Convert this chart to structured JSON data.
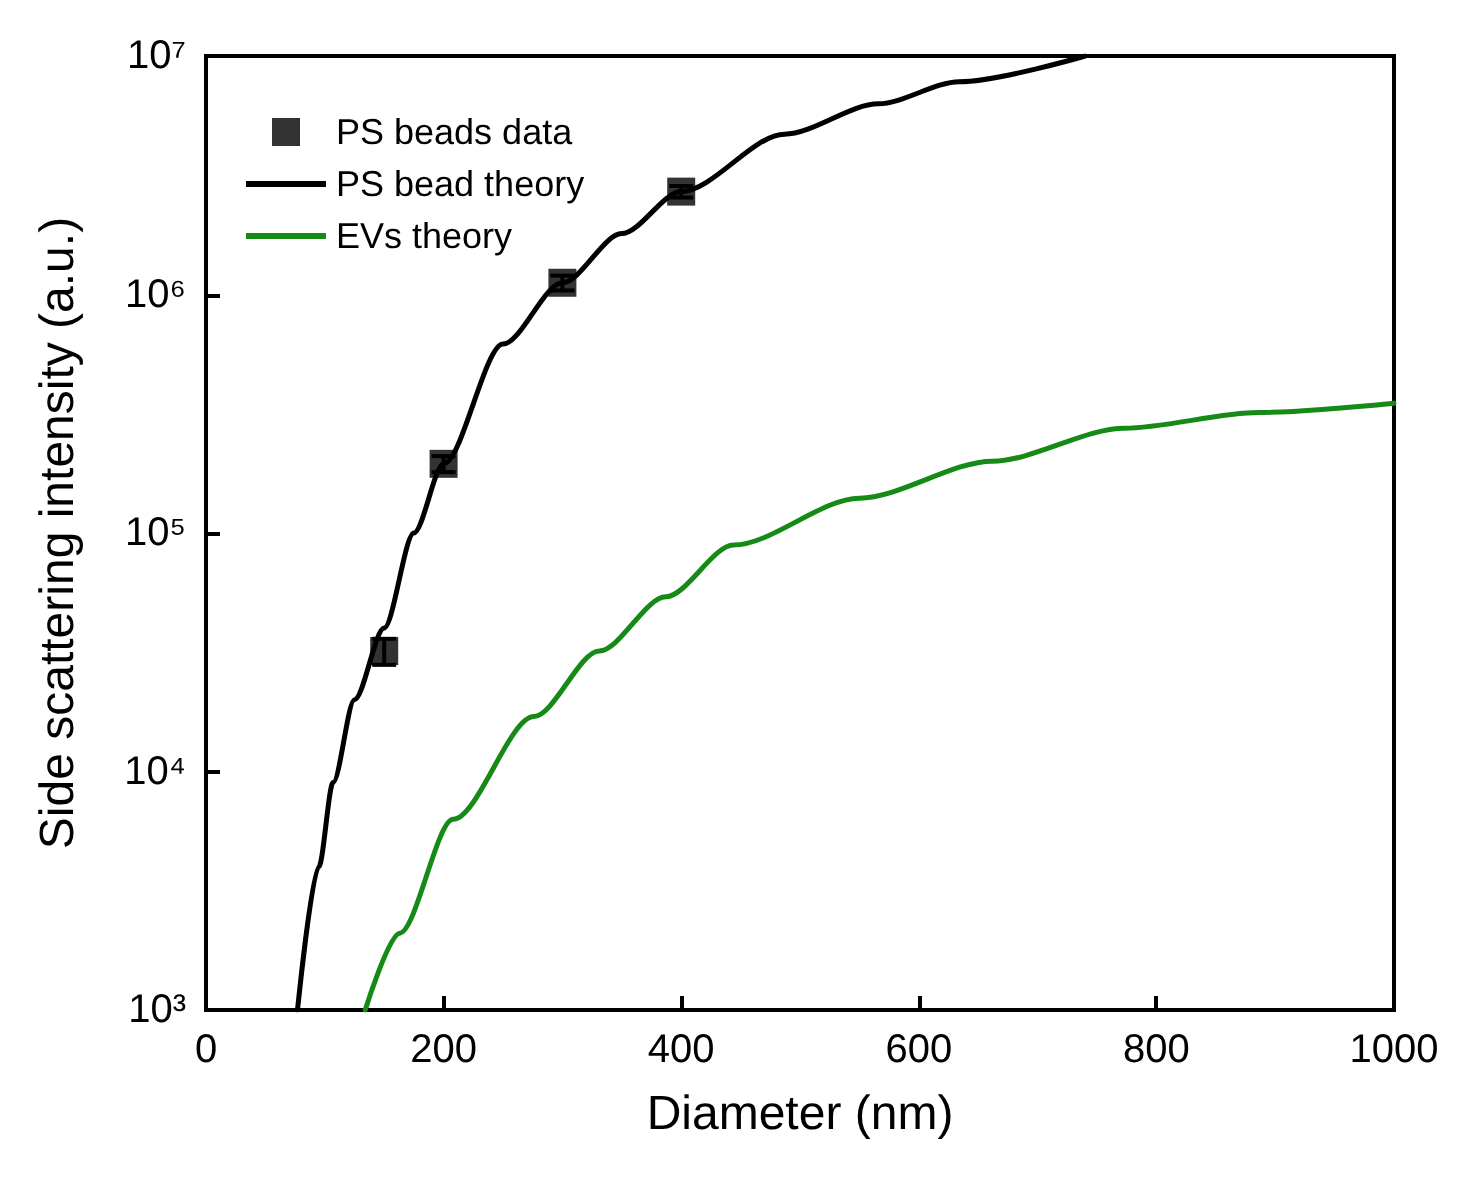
{
  "chart_data": {
    "type": "line",
    "xlabel": "Diameter (nm)",
    "ylabel": "Side scattering intensity (a.u.)",
    "xlim": [
      0,
      1000
    ],
    "xticks": [
      0,
      200,
      400,
      600,
      800,
      1000
    ],
    "ylim": [
      1000,
      10000000
    ],
    "yticks": [
      {
        "value": 1000,
        "label": "10³"
      },
      {
        "value": 10000,
        "label": "10⁴"
      },
      {
        "value": 100000,
        "label": "10⁵"
      },
      {
        "value": 1000000,
        "label": "10⁶"
      },
      {
        "value": 10000000,
        "label": "10⁷"
      }
    ],
    "log": "y",
    "grid": false,
    "legend": "top left",
    "series": [
      {
        "name": "PS beads data",
        "type": "scatter",
        "marker": "square",
        "color": "#000000",
        "x": [
          150,
          200,
          300,
          400
        ],
        "values": [
          32000,
          195000,
          1120000,
          2700000
        ],
        "errors": [
          4000,
          15000,
          80000,
          150000
        ]
      },
      {
        "name": "PS bead theory",
        "line_style": "solid",
        "color": "#000000",
        "x": [
          77,
          95,
          107,
          125,
          150,
          175,
          200,
          250,
          300,
          350,
          400,
          487,
          566,
          634,
          740
        ],
        "values": [
          1000,
          4000,
          9000,
          20000,
          40000,
          100000,
          195000,
          620000,
          1120000,
          1800000,
          2700000,
          4700000,
          6300000,
          7800000,
          10000000
        ]
      },
      {
        "name": "EVs theory",
        "line_style": "solid",
        "color": "#168a16",
        "x": [
          134,
          163,
          208,
          276,
          331,
          387,
          444,
          550,
          662,
          773,
          886,
          1000
        ],
        "values": [
          1000,
          2100,
          6300,
          17000,
          32000,
          54000,
          89000,
          140000,
          200000,
          275000,
          320000,
          350000
        ]
      }
    ]
  }
}
